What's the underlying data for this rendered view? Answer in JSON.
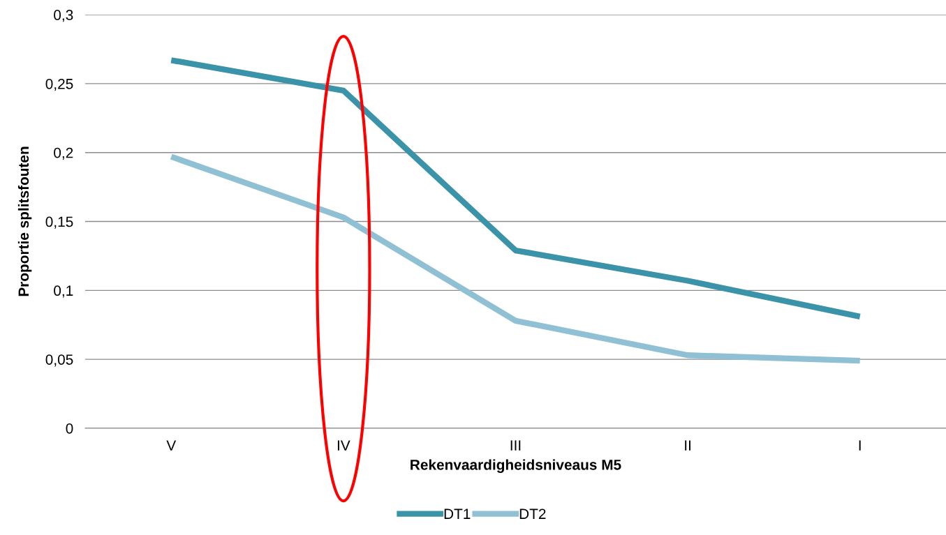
{
  "chart_data": {
    "type": "line",
    "xlabel": "Rekenvaardigheidsniveaus M5",
    "ylabel": "Proportie splitsfouten",
    "categories": [
      "V",
      "IV",
      "III",
      "II",
      "I"
    ],
    "series": [
      {
        "name": "DT1",
        "color": "#3a93a8",
        "values": [
          0.267,
          0.245,
          0.129,
          0.107,
          0.081
        ]
      },
      {
        "name": "DT2",
        "color": "#8fc0d3",
        "values": [
          0.197,
          0.153,
          0.078,
          0.053,
          0.049
        ]
      }
    ],
    "ylim": [
      0,
      0.3
    ],
    "yticks": [
      0,
      {
        "value": 0.05,
        "label": "0,05"
      },
      {
        "value": 0.1,
        "label": "0,1"
      },
      {
        "value": 0.15,
        "label": "0,15"
      },
      {
        "value": 0.2,
        "label": "0,2"
      },
      {
        "value": 0.25,
        "label": "0,25"
      },
      {
        "value": 0.3,
        "label": "0,3"
      }
    ],
    "grid": "y",
    "legend": "bottom",
    "marker": "none",
    "line_style": "solid"
  }
}
